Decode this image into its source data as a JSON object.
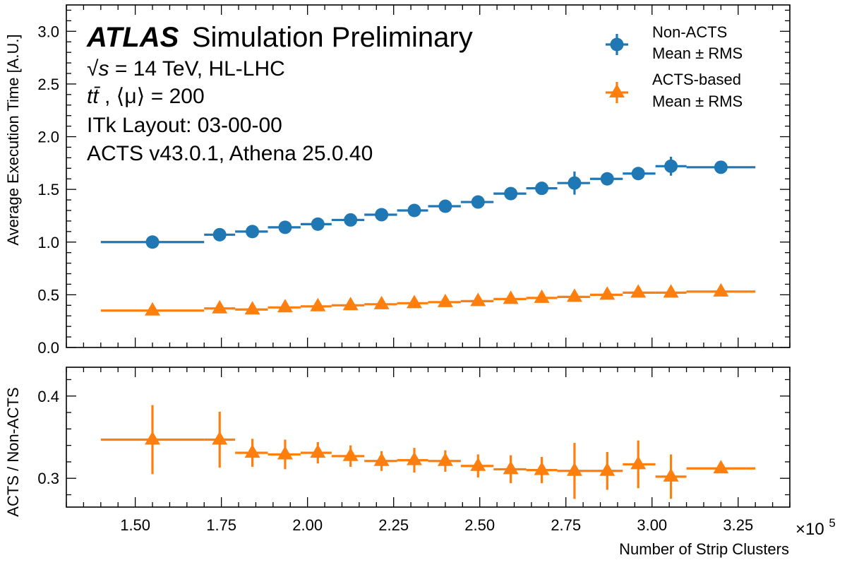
{
  "chart_data": [
    {
      "type": "scatter",
      "panel": "main",
      "ylabel": "Average Execution Time [A.U.]",
      "ylim": [
        0,
        3.25
      ],
      "yticks": [
        0.0,
        0.5,
        1.0,
        1.5,
        2.0,
        2.5,
        3.0
      ],
      "ytick_labels": [
        "0.0",
        "0.5",
        "1.0",
        "1.5",
        "2.0",
        "2.5",
        "3.0"
      ],
      "xlim": [
        1.3,
        3.4
      ],
      "annotations": {
        "experiment": "ATLAS",
        "status": "Simulation Preliminary",
        "line1_sqrt": "√s",
        "line1_rest": " = 14 TeV, HL-LHC",
        "line2_tt": "tt̄",
        "line2_rest": ", ⟨μ⟩ = 200",
        "line3": "ITk Layout: 03-00-00",
        "line4": "ACTS v43.0.1, Athena 25.0.40"
      },
      "legend_position": "upper right",
      "series": [
        {
          "legend_line1": "Non-ACTS",
          "legend_line2": "Mean ± RMS",
          "marker": "circle",
          "color": "#1f77b4",
          "x": [
            1.55,
            1.745,
            1.84,
            1.935,
            2.03,
            2.125,
            2.215,
            2.31,
            2.4,
            2.495,
            2.59,
            2.68,
            2.775,
            2.87,
            2.96,
            3.055,
            3.2
          ],
          "x_low": [
            1.4,
            1.7,
            1.79,
            1.885,
            1.98,
            2.07,
            2.165,
            2.26,
            2.35,
            2.445,
            2.54,
            2.635,
            2.725,
            2.82,
            2.915,
            3.01,
            3.1
          ],
          "x_high": [
            1.7,
            1.79,
            1.885,
            1.98,
            2.07,
            2.165,
            2.26,
            2.35,
            2.445,
            2.54,
            2.635,
            2.725,
            2.82,
            2.915,
            3.01,
            3.1,
            3.3
          ],
          "y": [
            1.0,
            1.07,
            1.1,
            1.14,
            1.17,
            1.21,
            1.26,
            1.3,
            1.34,
            1.38,
            1.46,
            1.51,
            1.56,
            1.6,
            1.65,
            1.72,
            1.71
          ],
          "y_err": [
            0.01,
            0.03,
            0.02,
            0.02,
            0.02,
            0.02,
            0.02,
            0.02,
            0.02,
            0.02,
            0.05,
            0.02,
            0.11,
            0.04,
            0.04,
            0.09,
            0.01
          ]
        },
        {
          "legend_line1": "ACTS-based",
          "legend_line2": "Mean ± RMS",
          "marker": "triangle",
          "color": "#ff7f0e",
          "x": [
            1.55,
            1.745,
            1.84,
            1.935,
            2.03,
            2.125,
            2.215,
            2.31,
            2.4,
            2.495,
            2.59,
            2.68,
            2.775,
            2.87,
            2.96,
            3.055,
            3.2
          ],
          "x_low": [
            1.4,
            1.7,
            1.79,
            1.885,
            1.98,
            2.07,
            2.165,
            2.26,
            2.35,
            2.445,
            2.54,
            2.635,
            2.725,
            2.82,
            2.915,
            3.01,
            3.1
          ],
          "x_high": [
            1.7,
            1.79,
            1.885,
            1.98,
            2.07,
            2.165,
            2.26,
            2.35,
            2.445,
            2.54,
            2.635,
            2.725,
            2.82,
            2.915,
            3.01,
            3.1,
            3.3
          ],
          "y": [
            0.35,
            0.37,
            0.36,
            0.38,
            0.39,
            0.4,
            0.41,
            0.42,
            0.43,
            0.44,
            0.46,
            0.47,
            0.48,
            0.5,
            0.52,
            0.52,
            0.53
          ],
          "y_err": [
            0.01,
            0.01,
            0.01,
            0.01,
            0.01,
            0.01,
            0.01,
            0.01,
            0.01,
            0.01,
            0.01,
            0.01,
            0.01,
            0.01,
            0.01,
            0.01,
            0.01
          ]
        }
      ]
    },
    {
      "type": "scatter",
      "panel": "ratio",
      "ylabel": "ACTS / Non-ACTS",
      "xlabel": "Number of Strip Clusters",
      "x_multiplier_base": "×10",
      "x_multiplier_exp": "5",
      "ylim": [
        0.265,
        0.435
      ],
      "yticks": [
        0.3,
        0.4
      ],
      "ytick_labels": [
        "0.3",
        "0.4"
      ],
      "xlim": [
        1.3,
        3.4
      ],
      "xticks": [
        1.5,
        1.75,
        2.0,
        2.25,
        2.5,
        2.75,
        3.0,
        3.25
      ],
      "xtick_labels": [
        "1.50",
        "1.75",
        "2.00",
        "2.25",
        "2.50",
        "2.75",
        "3.00",
        "3.25"
      ],
      "series": [
        {
          "marker": "triangle",
          "color": "#ff7f0e",
          "x": [
            1.55,
            1.745,
            1.84,
            1.935,
            2.03,
            2.125,
            2.215,
            2.31,
            2.4,
            2.495,
            2.59,
            2.68,
            2.775,
            2.87,
            2.96,
            3.055,
            3.2
          ],
          "x_low": [
            1.4,
            1.7,
            1.79,
            1.885,
            1.98,
            2.07,
            2.165,
            2.26,
            2.35,
            2.445,
            2.54,
            2.635,
            2.725,
            2.82,
            2.915,
            3.01,
            3.1
          ],
          "x_high": [
            1.7,
            1.79,
            1.885,
            1.98,
            2.07,
            2.165,
            2.26,
            2.35,
            2.445,
            2.54,
            2.635,
            2.725,
            2.82,
            2.915,
            3.01,
            3.1,
            3.3
          ],
          "y": [
            0.347,
            0.347,
            0.331,
            0.329,
            0.331,
            0.327,
            0.321,
            0.322,
            0.321,
            0.315,
            0.311,
            0.31,
            0.309,
            0.309,
            0.317,
            0.302,
            0.312
          ],
          "y_err": [
            0.042,
            0.034,
            0.017,
            0.018,
            0.013,
            0.013,
            0.012,
            0.015,
            0.013,
            0.014,
            0.017,
            0.016,
            0.034,
            0.023,
            0.029,
            0.027,
            0.004
          ]
        }
      ]
    }
  ]
}
